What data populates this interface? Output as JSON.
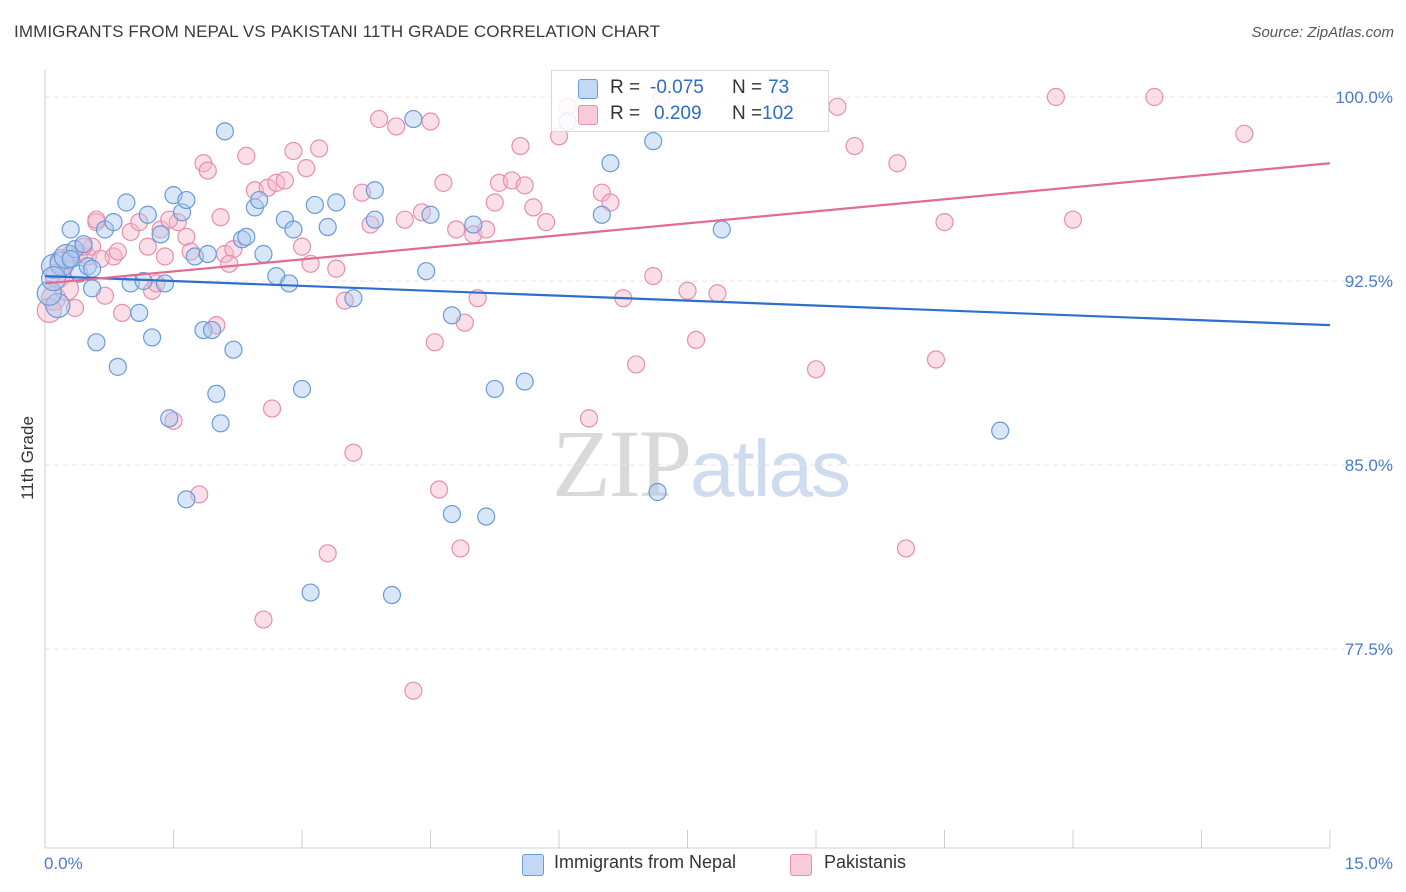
{
  "title": "IMMIGRANTS FROM NEPAL VS PAKISTANI 11TH GRADE CORRELATION CHART",
  "source": "Source: ZipAtlas.com",
  "watermark": {
    "zip": "ZIP",
    "atlas": "atlas"
  },
  "legend": {
    "rows": [
      {
        "r_label": "R =",
        "r_value": "-0.075",
        "n_label": "N =",
        "n_value": "73"
      },
      {
        "r_label": "R =",
        "r_value": "0.209",
        "n_label": "N =",
        "n_value": "102"
      }
    ]
  },
  "bottom_legend": [
    "Immigrants from Nepal",
    "Pakistanis"
  ],
  "colors": {
    "nepal_fill": "#aac8f0",
    "nepal_stroke": "#6a9bd8",
    "nepal_line": "#2f6fcb",
    "pak_fill": "#f5b8cb",
    "pak_stroke": "#e98fab",
    "pak_line": "#e26b94",
    "grid": "#e4e4e4",
    "tick_text": "#4a7cc7"
  },
  "chart_data": {
    "type": "scatter",
    "xlabel": "",
    "ylabel": "11th Grade",
    "xlim": [
      0.0,
      15.0
    ],
    "ylim": [
      70.0,
      101.0
    ],
    "x_tick_labels": [
      "0.0%",
      "15.0%"
    ],
    "y_ticks": [
      100.0,
      92.5,
      85.0,
      77.5
    ],
    "y_tick_labels": [
      "100.0%",
      "92.5%",
      "85.0%",
      "77.5%"
    ],
    "grid": true,
    "series": [
      {
        "name": "Immigrants from Nepal",
        "trend": {
          "x": [
            0.0,
            15.0
          ],
          "y": [
            92.7,
            90.7
          ]
        },
        "points": [
          [
            0.1,
            93.1
          ],
          [
            0.2,
            93.2
          ],
          [
            0.25,
            93.5
          ],
          [
            0.3,
            94.6
          ],
          [
            0.35,
            93.8
          ],
          [
            0.4,
            92.8
          ],
          [
            0.45,
            94.0
          ],
          [
            0.5,
            93.1
          ],
          [
            0.55,
            92.2
          ],
          [
            0.6,
            90.0
          ],
          [
            0.7,
            94.6
          ],
          [
            0.8,
            94.9
          ],
          [
            0.95,
            95.7
          ],
          [
            0.85,
            89.0
          ],
          [
            1.0,
            92.4
          ],
          [
            1.1,
            91.2
          ],
          [
            1.15,
            92.5
          ],
          [
            1.2,
            95.2
          ],
          [
            1.25,
            90.2
          ],
          [
            1.35,
            94.4
          ],
          [
            1.4,
            92.4
          ],
          [
            1.45,
            86.9
          ],
          [
            1.5,
            96.0
          ],
          [
            1.6,
            95.3
          ],
          [
            1.65,
            83.6
          ],
          [
            1.65,
            95.8
          ],
          [
            1.75,
            93.5
          ],
          [
            1.85,
            90.5
          ],
          [
            1.9,
            93.6
          ],
          [
            1.95,
            90.5
          ],
          [
            2.0,
            87.9
          ],
          [
            2.05,
            86.7
          ],
          [
            2.1,
            98.6
          ],
          [
            2.2,
            89.7
          ],
          [
            2.3,
            94.2
          ],
          [
            2.35,
            94.3
          ],
          [
            2.45,
            95.5
          ],
          [
            2.5,
            95.8
          ],
          [
            2.55,
            93.6
          ],
          [
            2.7,
            92.7
          ],
          [
            2.8,
            95.0
          ],
          [
            2.85,
            92.4
          ],
          [
            2.9,
            94.6
          ],
          [
            3.0,
            88.1
          ],
          [
            3.15,
            95.6
          ],
          [
            3.1,
            79.8
          ],
          [
            3.3,
            94.7
          ],
          [
            3.4,
            95.7
          ],
          [
            3.6,
            91.8
          ],
          [
            3.85,
            95.0
          ],
          [
            3.85,
            96.2
          ],
          [
            4.05,
            79.7
          ],
          [
            4.3,
            99.1
          ],
          [
            4.5,
            95.2
          ],
          [
            4.45,
            92.9
          ],
          [
            4.75,
            91.1
          ],
          [
            4.75,
            83.0
          ],
          [
            5.0,
            94.8
          ],
          [
            5.15,
            82.9
          ],
          [
            5.25,
            88.1
          ],
          [
            5.6,
            88.4
          ],
          [
            6.1,
            99.0
          ],
          [
            6.5,
            95.2
          ],
          [
            6.6,
            97.3
          ],
          [
            7.1,
            98.2
          ],
          [
            7.15,
            83.9
          ],
          [
            7.9,
            94.6
          ],
          [
            11.15,
            86.4
          ],
          [
            0.15,
            91.5
          ],
          [
            0.05,
            92.0
          ],
          [
            0.1,
            92.6
          ],
          [
            0.3,
            93.4
          ],
          [
            0.55,
            93.0
          ]
        ]
      },
      {
        "name": "Pakistanis",
        "trend": {
          "x": [
            0.0,
            15.0
          ],
          "y": [
            92.4,
            97.3
          ]
        },
        "points": [
          [
            0.1,
            91.8
          ],
          [
            0.2,
            93.3
          ],
          [
            0.3,
            93.6
          ],
          [
            0.35,
            91.4
          ],
          [
            0.4,
            93.6
          ],
          [
            0.5,
            93.5
          ],
          [
            0.55,
            93.9
          ],
          [
            0.6,
            94.9
          ],
          [
            0.7,
            91.9
          ],
          [
            0.8,
            93.5
          ],
          [
            0.85,
            93.7
          ],
          [
            0.9,
            91.2
          ],
          [
            1.0,
            94.5
          ],
          [
            1.1,
            94.9
          ],
          [
            1.2,
            93.9
          ],
          [
            1.25,
            92.1
          ],
          [
            1.3,
            92.4
          ],
          [
            1.35,
            94.6
          ],
          [
            1.4,
            93.5
          ],
          [
            1.5,
            86.8
          ],
          [
            1.55,
            94.9
          ],
          [
            1.65,
            94.3
          ],
          [
            1.7,
            93.7
          ],
          [
            1.8,
            83.8
          ],
          [
            1.85,
            97.3
          ],
          [
            1.9,
            97.0
          ],
          [
            2.0,
            90.7
          ],
          [
            2.05,
            95.1
          ],
          [
            2.1,
            93.6
          ],
          [
            2.2,
            93.8
          ],
          [
            2.35,
            97.6
          ],
          [
            2.45,
            96.2
          ],
          [
            2.55,
            78.7
          ],
          [
            2.6,
            96.3
          ],
          [
            2.65,
            87.3
          ],
          [
            2.7,
            96.5
          ],
          [
            2.8,
            96.6
          ],
          [
            2.9,
            97.8
          ],
          [
            3.0,
            93.9
          ],
          [
            3.05,
            97.1
          ],
          [
            3.1,
            93.2
          ],
          [
            3.2,
            97.9
          ],
          [
            3.3,
            81.4
          ],
          [
            3.4,
            93.0
          ],
          [
            3.5,
            91.7
          ],
          [
            3.6,
            85.5
          ],
          [
            3.7,
            96.1
          ],
          [
            3.8,
            94.8
          ],
          [
            3.9,
            99.1
          ],
          [
            4.1,
            98.8
          ],
          [
            4.2,
            95.0
          ],
          [
            4.3,
            75.8
          ],
          [
            4.4,
            95.3
          ],
          [
            4.5,
            99.0
          ],
          [
            4.55,
            90.0
          ],
          [
            4.6,
            84.0
          ],
          [
            4.65,
            96.5
          ],
          [
            4.8,
            94.6
          ],
          [
            4.85,
            81.6
          ],
          [
            4.9,
            90.8
          ],
          [
            5.0,
            94.4
          ],
          [
            5.05,
            91.8
          ],
          [
            5.15,
            94.6
          ],
          [
            5.25,
            95.7
          ],
          [
            5.3,
            96.5
          ],
          [
            5.45,
            96.6
          ],
          [
            5.55,
            98.0
          ],
          [
            5.6,
            96.4
          ],
          [
            5.7,
            95.5
          ],
          [
            5.85,
            94.9
          ],
          [
            6.0,
            98.4
          ],
          [
            6.1,
            99.6
          ],
          [
            6.35,
            86.9
          ],
          [
            6.5,
            96.1
          ],
          [
            6.6,
            95.7
          ],
          [
            6.75,
            91.8
          ],
          [
            6.9,
            89.1
          ],
          [
            7.1,
            92.7
          ],
          [
            7.2,
            100.0
          ],
          [
            7.5,
            92.1
          ],
          [
            7.6,
            90.1
          ],
          [
            7.85,
            92.0
          ],
          [
            8.6,
            100.0
          ],
          [
            9.0,
            88.9
          ],
          [
            9.25,
            99.6
          ],
          [
            9.45,
            98.0
          ],
          [
            9.95,
            97.3
          ],
          [
            10.05,
            81.6
          ],
          [
            10.4,
            89.3
          ],
          [
            10.5,
            94.9
          ],
          [
            11.8,
            100.0
          ],
          [
            12.0,
            95.0
          ],
          [
            12.95,
            100.0
          ],
          [
            14.0,
            98.5
          ],
          [
            0.05,
            91.3
          ],
          [
            0.15,
            92.7
          ],
          [
            0.25,
            92.2
          ],
          [
            0.45,
            93.9
          ],
          [
            0.65,
            93.4
          ],
          [
            1.45,
            95.0
          ],
          [
            2.15,
            93.2
          ],
          [
            0.6,
            95.0
          ]
        ]
      }
    ]
  }
}
